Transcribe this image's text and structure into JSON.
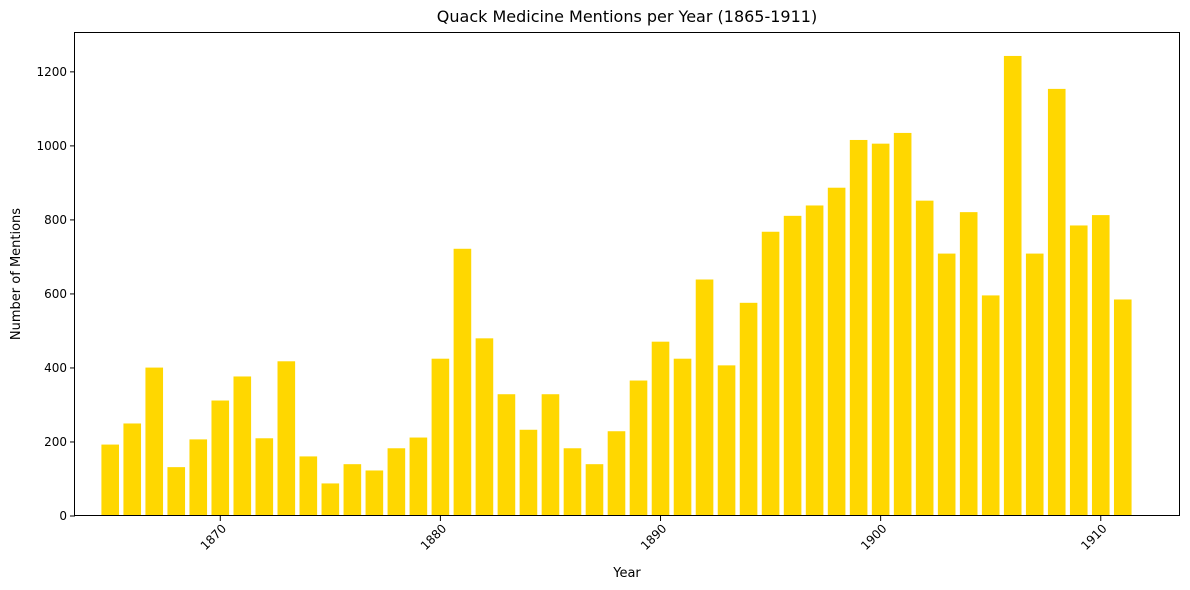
{
  "chart_data": {
    "type": "bar",
    "title": "Quack Medicine Mentions per Year (1865-1911)",
    "xlabel": "Year",
    "ylabel": "Number of Mentions",
    "bar_color": "#FFD700",
    "xlim": [
      1863.4,
      1913.6
    ],
    "ylim": [
      0,
      1305
    ],
    "xticks": [
      1870,
      1880,
      1890,
      1900,
      1910
    ],
    "yticks": [
      0,
      200,
      400,
      600,
      800,
      1000,
      1200
    ],
    "x": [
      1865,
      1866,
      1867,
      1868,
      1869,
      1870,
      1871,
      1872,
      1873,
      1874,
      1875,
      1876,
      1877,
      1878,
      1879,
      1880,
      1881,
      1882,
      1883,
      1884,
      1885,
      1886,
      1887,
      1888,
      1889,
      1890,
      1891,
      1892,
      1893,
      1894,
      1895,
      1896,
      1897,
      1898,
      1899,
      1900,
      1901,
      1902,
      1903,
      1904,
      1905,
      1906,
      1907,
      1908,
      1909,
      1910,
      1911
    ],
    "values": [
      193,
      250,
      401,
      132,
      207,
      312,
      377,
      210,
      418,
      161,
      88,
      140,
      123,
      183,
      212,
      425,
      722,
      480,
      329,
      233,
      329,
      183,
      140,
      229,
      366,
      471,
      425,
      639,
      407,
      576,
      768,
      811,
      839,
      887,
      1016,
      1006,
      1035,
      852,
      709,
      821,
      596,
      1243,
      709,
      1154,
      785,
      813,
      585
    ]
  }
}
